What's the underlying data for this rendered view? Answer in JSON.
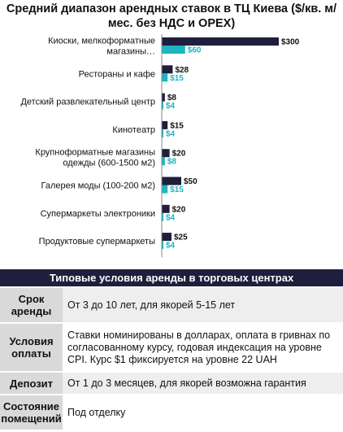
{
  "chart_data": {
    "type": "bar",
    "orientation": "horizontal",
    "title": "Средний диапазон арендных ставок в ТЦ Киева ($/кв. м/мес. без НДС и OPEX)",
    "categories": [
      "Киоски, мелкоформатные магазины…",
      "Рестораны и кафе",
      "Детский развлекательный центр",
      "Кинотеатр",
      "Крупноформатные магазины одежды (600-1500 м2)",
      "Галерея моды (100-200 м2)",
      "Супермаркеты электроники",
      "Продуктовые супермаркеты"
    ],
    "series": [
      {
        "values": [
          300,
          28,
          8,
          15,
          20,
          50,
          20,
          25
        ],
        "labels": [
          "$300",
          "$28",
          "$8",
          "$15",
          "$20",
          "$50",
          "$20",
          "$25"
        ],
        "color": "#1f1e3d"
      },
      {
        "values": [
          60,
          15,
          4,
          4,
          8,
          15,
          4,
          4
        ],
        "labels": [
          "$60",
          "$15",
          "$4",
          "$4",
          "$8",
          "$15",
          "$4",
          "$4"
        ],
        "color": "#1ab6c4"
      }
    ],
    "xlim": [
      0,
      300
    ],
    "grid": false,
    "legend": "none"
  },
  "section": {
    "title": "Типовые условия аренды в торговых центрах",
    "rows": [
      {
        "key": "Срок аренды",
        "value": "От 3 до 10 лет,  для якорей 5-15 лет"
      },
      {
        "key": "Условия оплаты",
        "value": "Ставки номинированы в долларах, оплата в гривнах по согласованному курсу, годовая индексация на уровне CPI. Курс $1 фиксируется на уровне 22 UAH"
      },
      {
        "key": "Депозит",
        "value": "От 1 до 3 месяцев, для якорей возможна гарантия"
      },
      {
        "key": "Состояние помещений",
        "value": "Под отделку"
      }
    ]
  }
}
